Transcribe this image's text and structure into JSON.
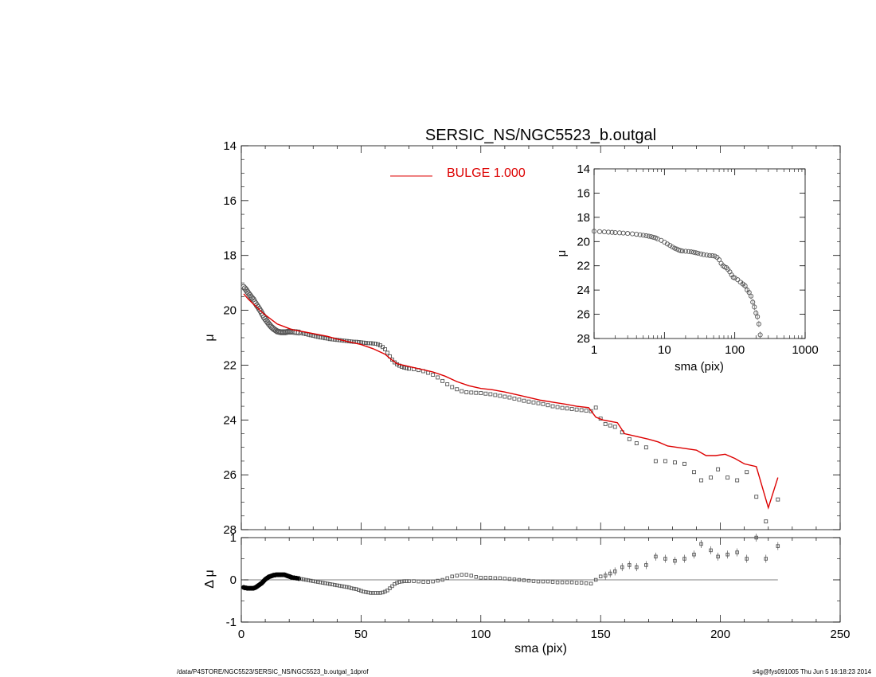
{
  "footer": {
    "left": "/data/P4STORE/NGC5523/SERSIC_NS/NGC5523_b.outgal_1dprof",
    "right": "s4g@fys091005  Thu Jun  5 16:18:23 2014"
  },
  "colors": {
    "model": "#dd0000",
    "data": "#555555",
    "axis": "#000000"
  },
  "chart_data": [
    {
      "type": "scatter",
      "title": "SERSIC_NS/NGC5523_b.outgal",
      "xlabel": "",
      "ylabel": "μ",
      "xlim": [
        0,
        250
      ],
      "ylim": [
        28,
        14
      ],
      "y_inverted": true,
      "xticks": [
        0,
        50,
        100,
        150,
        200,
        250
      ],
      "yticks": [
        14,
        16,
        18,
        20,
        22,
        24,
        26,
        28
      ],
      "legend": {
        "position": "top-center",
        "entries": [
          "BULGE  1.000"
        ]
      },
      "series": [
        {
          "kind": "points",
          "x": [
            1,
            1.5,
            2,
            2.5,
            3,
            3.5,
            4,
            4.5,
            5,
            5.5,
            6,
            6.5,
            7,
            7.5,
            8,
            8.5,
            9,
            9.5,
            10,
            10.5,
            11,
            11.5,
            12,
            12.5,
            13,
            13.5,
            14,
            14.5,
            15,
            15.5,
            16,
            16.5,
            17,
            17.5,
            18,
            18.5,
            19,
            19.5,
            20,
            20.5,
            21,
            22,
            23,
            24,
            25,
            26,
            27,
            28,
            29,
            30,
            31,
            32,
            33,
            34,
            35,
            36,
            37,
            38,
            39,
            40,
            41,
            42,
            43,
            44,
            45,
            46,
            47,
            48,
            49,
            50,
            51,
            52,
            53,
            54,
            55,
            56,
            57,
            58,
            59,
            60,
            61,
            62,
            63,
            64,
            65,
            66,
            67,
            68,
            69,
            70,
            72,
            74,
            76,
            78,
            80,
            82,
            84,
            86,
            88,
            90,
            92,
            94,
            96,
            98,
            100,
            102,
            104,
            106,
            108,
            110,
            112,
            114,
            116,
            118,
            120,
            122,
            124,
            126,
            128,
            130,
            132,
            134,
            136,
            138,
            140,
            142,
            144,
            146,
            148,
            150,
            152,
            154,
            156,
            159,
            162,
            165,
            169,
            173,
            177,
            181,
            185,
            189,
            192,
            196,
            199,
            203,
            207,
            211,
            215,
            219,
            224
          ],
          "y": [
            19.15,
            19.2,
            19.25,
            19.32,
            19.38,
            19.44,
            19.5,
            19.55,
            19.6,
            19.68,
            19.75,
            19.82,
            19.88,
            19.95,
            20.02,
            20.1,
            20.18,
            20.26,
            20.32,
            20.38,
            20.44,
            20.5,
            20.55,
            20.6,
            20.64,
            20.68,
            20.71,
            20.74,
            20.77,
            20.78,
            20.79,
            20.8,
            20.8,
            20.8,
            20.8,
            20.8,
            20.79,
            20.78,
            20.78,
            20.78,
            20.78,
            20.79,
            20.8,
            20.81,
            20.83,
            20.85,
            20.87,
            20.89,
            20.91,
            20.93,
            20.95,
            20.97,
            20.99,
            21,
            21.02,
            21.03,
            21.05,
            21.06,
            21.07,
            21.08,
            21.09,
            21.1,
            21.11,
            21.12,
            21.13,
            21.14,
            21.15,
            21.15,
            21.16,
            21.17,
            21.18,
            21.19,
            21.2,
            21.2,
            21.21,
            21.22,
            21.24,
            21.28,
            21.34,
            21.42,
            21.55,
            21.68,
            21.8,
            21.9,
            21.97,
            22.02,
            22.06,
            22.09,
            22.11,
            22.13,
            22.15,
            22.18,
            22.22,
            22.28,
            22.35,
            22.45,
            22.58,
            22.7,
            22.8,
            22.88,
            22.95,
            22.99,
            23,
            23.01,
            23.02,
            23.04,
            23.06,
            23.09,
            23.12,
            23.15,
            23.18,
            23.22,
            23.26,
            23.3,
            23.33,
            23.36,
            23.39,
            23.42,
            23.46,
            23.5,
            23.53,
            23.56,
            23.58,
            23.6,
            23.62,
            23.64,
            23.66,
            23.68,
            23.55,
            23.95,
            24.15,
            24.2,
            24.25,
            24.45,
            24.7,
            24.85,
            25,
            25.5,
            25.5,
            25.55,
            25.6,
            25.9,
            26.2,
            26.1,
            25.8,
            26.1,
            26.2,
            25.9,
            26.8,
            27.7,
            26.9
          ]
        },
        {
          "name": "BULGE  1.000",
          "kind": "line",
          "x": [
            1,
            3,
            6,
            9,
            12,
            15,
            18,
            21,
            24,
            27,
            30,
            33,
            36,
            40,
            45,
            50,
            55,
            60,
            62,
            65,
            70,
            75,
            80,
            85,
            90,
            95,
            100,
            105,
            110,
            115,
            120,
            125,
            130,
            135,
            140,
            145,
            148,
            151,
            154,
            157,
            160,
            165,
            170,
            174,
            178,
            182,
            186,
            190,
            194,
            198,
            202,
            206,
            210,
            215,
            220,
            224
          ],
          "y": [
            19.4,
            19.6,
            19.85,
            20.1,
            20.3,
            20.5,
            20.6,
            20.7,
            20.75,
            20.8,
            20.85,
            20.9,
            20.95,
            21.05,
            21.15,
            21.25,
            21.4,
            21.6,
            21.75,
            21.95,
            22.05,
            22.15,
            22.25,
            22.4,
            22.6,
            22.75,
            22.85,
            22.9,
            22.98,
            23.08,
            23.18,
            23.28,
            23.35,
            23.42,
            23.5,
            23.55,
            23.9,
            24.0,
            24.05,
            24.1,
            24.5,
            24.6,
            24.7,
            24.8,
            24.95,
            25.0,
            25.05,
            25.1,
            25.3,
            25.3,
            25.25,
            25.4,
            25.6,
            25.7,
            27.2,
            26.1
          ]
        }
      ]
    },
    {
      "type": "scatter",
      "xlabel": "sma (pix)",
      "ylabel": "Δ μ",
      "xlim": [
        0,
        250
      ],
      "ylim": [
        -1,
        1
      ],
      "xticks": [
        0,
        50,
        100,
        150,
        200,
        250
      ],
      "yticks": [
        -1,
        0,
        1
      ],
      "series": [
        {
          "kind": "points",
          "x": [
            1,
            1.5,
            2,
            2.5,
            3,
            3.5,
            4,
            4.5,
            5,
            5.5,
            6,
            6.5,
            7,
            7.5,
            8,
            8.5,
            9,
            9.5,
            10,
            10.5,
            11,
            11.5,
            12,
            12.5,
            13,
            13.5,
            14,
            14.5,
            15,
            15.5,
            16,
            16.5,
            17,
            17.5,
            18,
            18.5,
            19,
            19.5,
            20,
            20.5,
            21,
            22,
            23,
            24,
            25,
            26,
            27,
            28,
            29,
            30,
            31,
            32,
            33,
            34,
            35,
            36,
            37,
            38,
            39,
            40,
            41,
            42,
            43,
            44,
            45,
            46,
            47,
            48,
            49,
            50,
            51,
            52,
            53,
            54,
            55,
            56,
            57,
            58,
            59,
            60,
            61,
            62,
            63,
            64,
            65,
            66,
            67,
            68,
            69,
            70,
            72,
            74,
            76,
            78,
            80,
            82,
            84,
            86,
            88,
            90,
            92,
            94,
            96,
            98,
            100,
            102,
            104,
            106,
            108,
            110,
            112,
            114,
            116,
            118,
            120,
            122,
            124,
            126,
            128,
            130,
            132,
            134,
            136,
            138,
            140,
            142,
            144,
            146,
            148,
            150,
            152,
            154,
            156,
            159,
            162,
            165,
            169,
            173,
            177,
            181,
            185,
            189,
            192,
            196,
            199,
            203,
            207,
            211,
            215,
            219,
            224
          ],
          "y": [
            -0.18,
            -0.19,
            -0.19,
            -0.2,
            -0.2,
            -0.2,
            -0.2,
            -0.2,
            -0.2,
            -0.19,
            -0.18,
            -0.16,
            -0.14,
            -0.12,
            -0.1,
            -0.08,
            -0.05,
            -0.02,
            0.01,
            0.03,
            0.05,
            0.07,
            0.08,
            0.09,
            0.1,
            0.11,
            0.11,
            0.12,
            0.12,
            0.12,
            0.12,
            0.12,
            0.12,
            0.12,
            0.12,
            0.11,
            0.1,
            0.09,
            0.08,
            0.07,
            0.06,
            0.05,
            0.04,
            0.03,
            0.02,
            0.01,
            0,
            -0.01,
            -0.02,
            -0.03,
            -0.04,
            -0.05,
            -0.06,
            -0.07,
            -0.08,
            -0.09,
            -0.1,
            -0.11,
            -0.12,
            -0.13,
            -0.14,
            -0.15,
            -0.16,
            -0.17,
            -0.18,
            -0.2,
            -0.21,
            -0.22,
            -0.24,
            -0.26,
            -0.28,
            -0.29,
            -0.3,
            -0.31,
            -0.31,
            -0.31,
            -0.31,
            -0.31,
            -0.3,
            -0.28,
            -0.25,
            -0.2,
            -0.15,
            -0.1,
            -0.07,
            -0.05,
            -0.04,
            -0.03,
            -0.03,
            -0.03,
            -0.03,
            -0.04,
            -0.05,
            -0.05,
            -0.04,
            -0.02,
            0,
            0.04,
            0.08,
            0.1,
            0.12,
            0.12,
            0.1,
            0.07,
            0.05,
            0.05,
            0.05,
            0.04,
            0.04,
            0.03,
            0.02,
            0.01,
            0,
            -0.01,
            -0.02,
            -0.03,
            -0.04,
            -0.04,
            -0.04,
            -0.05,
            -0.06,
            -0.06,
            -0.06,
            -0.06,
            -0.07,
            -0.07,
            -0.08,
            -0.09,
            0,
            0.08,
            0.1,
            0.15,
            0.2,
            0.3,
            0.35,
            0.3,
            0.35,
            0.55,
            0.5,
            0.45,
            0.5,
            0.6,
            0.85,
            0.7,
            0.55,
            0.6,
            0.65,
            0.5,
            1.0,
            0.5,
            0.8
          ]
        }
      ]
    },
    {
      "type": "scatter",
      "xlabel": "sma (pix)",
      "ylabel": "μ",
      "xscale": "log",
      "xlim": [
        1,
        1000
      ],
      "ylim": [
        28,
        14
      ],
      "y_inverted": true,
      "xticks": [
        1,
        10,
        100,
        1000
      ],
      "yticks": [
        14,
        16,
        18,
        20,
        22,
        24,
        26,
        28
      ],
      "series": [
        {
          "kind": "points",
          "x": [
            1,
            1.2,
            1.4,
            1.6,
            1.8,
            2,
            2.3,
            2.6,
            3,
            3.5,
            4,
            4.5,
            5,
            5.5,
            6,
            6.5,
            7,
            7.5,
            8,
            9,
            10,
            11,
            12,
            13,
            14,
            15,
            16,
            17,
            18,
            20,
            22,
            24,
            26,
            28,
            30,
            33,
            36,
            40,
            44,
            48,
            52,
            56,
            60,
            64,
            68,
            72,
            76,
            80,
            85,
            90,
            95,
            100,
            110,
            120,
            130,
            140,
            150,
            160,
            170,
            180,
            190,
            200,
            210,
            220,
            230
          ],
          "y": [
            19.15,
            19.18,
            19.2,
            19.22,
            19.24,
            19.26,
            19.28,
            19.3,
            19.33,
            19.36,
            19.4,
            19.44,
            19.48,
            19.52,
            19.56,
            19.6,
            19.65,
            19.7,
            19.78,
            19.9,
            20.05,
            20.2,
            20.32,
            20.45,
            20.55,
            20.62,
            20.7,
            20.75,
            20.78,
            20.8,
            20.82,
            20.85,
            20.88,
            20.92,
            20.96,
            21.02,
            21.08,
            21.12,
            21.15,
            21.17,
            21.2,
            21.3,
            21.5,
            21.8,
            22,
            22.1,
            22.15,
            22.3,
            22.5,
            22.75,
            22.95,
            23,
            23.15,
            23.35,
            23.5,
            23.65,
            24,
            24.2,
            24.5,
            25,
            25.4,
            25.9,
            26.2,
            26.8,
            27.7
          ]
        }
      ]
    }
  ]
}
